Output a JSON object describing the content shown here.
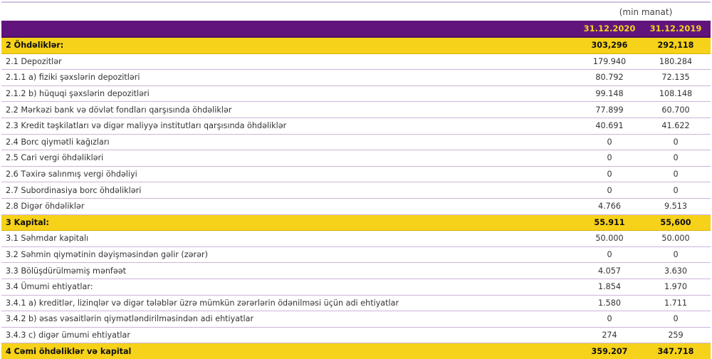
{
  "unit": "(min manat)",
  "columns": [
    "31.12.2020",
    "31.12.2019"
  ],
  "colors": {
    "header": "#61157c",
    "section": "#f6d21a",
    "divider": "#cdb3da"
  },
  "rows": [
    {
      "label": "2 Öhdəliklər:",
      "v1": "303,296",
      "v2": "292,118",
      "section": true
    },
    {
      "label": "2.1 Depozitlər",
      "v1": "179.940",
      "v2": "180.284"
    },
    {
      "label": "2.1.1 a) fiziki şəxslərin depozitləri",
      "v1": "80.792",
      "v2": "72.135"
    },
    {
      "label": "2.1.2 b) hüquqi şəxslərin depozitləri",
      "v1": "99.148",
      "v2": "108.148"
    },
    {
      "label": "2.2 Mərkəzi bank və dövlət fondları qarşısında öhdəliklər",
      "v1": "77.899",
      "v2": "60.700"
    },
    {
      "label": "2.3 Kredit təşkilatları və digər maliyyə institutları qarşısında öhdəliklər",
      "v1": "40.691",
      "v2": "41.622"
    },
    {
      "label": "2.4 Borc qiymətli kağızları",
      "v1": "0",
      "v2": "0"
    },
    {
      "label": "2.5 Cari vergi öhdəlikləri",
      "v1": "0",
      "v2": "0"
    },
    {
      "label": "2.6 Təxirə salınmış vergi öhdəliyi",
      "v1": "0",
      "v2": "0"
    },
    {
      "label": "2.7 Subordinasiya borc öhdəlikləri",
      "v1": "0",
      "v2": "0"
    },
    {
      "label": "2.8 Digər öhdəliklər",
      "v1": "4.766",
      "v2": "9.513"
    },
    {
      "label": "3 Kapital:",
      "v1": "55.911",
      "v2": "55,600",
      "section": true
    },
    {
      "label": "3.1 Səhmdar kapitalı",
      "v1": "50.000",
      "v2": "50.000"
    },
    {
      "label": "3.2 Səhmin qiymətinin dəyişməsindən gəlir (zərər)",
      "v1": "0",
      "v2": "0"
    },
    {
      "label": "3.3 Bölüşdürülməmiş mənfəət",
      "v1": "4.057",
      "v2": "3.630"
    },
    {
      "label": "3.4 Ümumi ehtiyatlar:",
      "v1": "1.854",
      "v2": "1.970"
    },
    {
      "label": "3.4.1 a) kreditlər, lizinqlər və digər tələblər üzrə mümkün zərərlərin ödənilməsi üçün adi ehtiyatlar",
      "v1": "1.580",
      "v2": "1.711"
    },
    {
      "label": "3.4.2 b) əsas vəsaitlərin qiymətləndirilməsindən adi ehtiyatlar",
      "v1": "0",
      "v2": "0"
    },
    {
      "label": "3.4.3 c) digər ümumi ehtiyatlar",
      "v1": "274",
      "v2": "259"
    },
    {
      "label": "4 Cəmi öhdəliklər və kapital",
      "v1": "359.207",
      "v2": "347.718",
      "section": true
    }
  ]
}
